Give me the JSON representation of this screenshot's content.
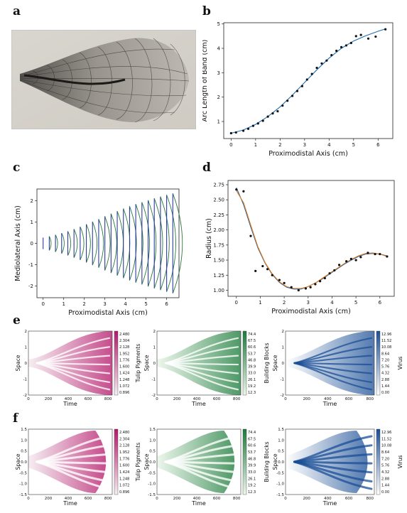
{
  "panels": {
    "a": "a",
    "b": "b",
    "c": "c",
    "d": "d",
    "e": "e",
    "f": "f"
  },
  "chart_data": [
    {
      "id": "b",
      "type": "scatter",
      "xlabel": "Proximodistal Axis (cm)",
      "ylabel": "Arc Length of Band (cm)",
      "xlim": [
        -0.3,
        6.6
      ],
      "ylim": [
        0.3,
        5.05
      ],
      "xticks": [
        0,
        1,
        2,
        3,
        4,
        5,
        6
      ],
      "yticks": [
        1,
        2,
        3,
        4,
        5
      ],
      "series": [
        {
          "kind": "points",
          "color": "#111111",
          "x": [
            0.0,
            0.2,
            0.5,
            0.7,
            0.9,
            1.1,
            1.3,
            1.5,
            1.7,
            1.9,
            2.1,
            2.3,
            2.5,
            2.7,
            2.9,
            3.1,
            3.3,
            3.5,
            3.7,
            3.9,
            4.1,
            4.3,
            4.5,
            4.7,
            4.9,
            5.1,
            5.3,
            5.6,
            5.9,
            6.3
          ],
          "y": [
            0.52,
            0.55,
            0.62,
            0.7,
            0.82,
            0.92,
            1.03,
            1.2,
            1.33,
            1.42,
            1.65,
            1.85,
            2.05,
            2.25,
            2.45,
            2.72,
            2.95,
            3.2,
            3.38,
            3.5,
            3.72,
            3.9,
            4.05,
            4.12,
            4.22,
            4.5,
            4.55,
            4.4,
            4.48,
            4.78
          ]
        },
        {
          "kind": "curve",
          "color": "#1f6fb4",
          "x": [
            0.0,
            0.5,
            1.0,
            1.5,
            2.0,
            2.5,
            3.0,
            3.5,
            4.0,
            4.5,
            5.0,
            5.5,
            6.0,
            6.3
          ],
          "y": [
            0.52,
            0.65,
            0.88,
            1.2,
            1.6,
            2.08,
            2.6,
            3.12,
            3.6,
            4.0,
            4.3,
            4.52,
            4.7,
            4.8
          ]
        }
      ]
    },
    {
      "id": "c",
      "type": "line",
      "xlabel": "Proximodistal Axis (cm)",
      "ylabel": "Mediolateral Axis (cm)",
      "xlim": [
        -0.3,
        6.6
      ],
      "ylim": [
        -2.55,
        2.55
      ],
      "xticks": [
        0,
        1,
        2,
        3,
        4,
        5,
        6
      ],
      "yticks": [
        -2,
        -1,
        0,
        1,
        2
      ],
      "band_x": [
        0.0,
        0.3,
        0.6,
        0.9,
        1.2,
        1.5,
        1.8,
        2.1,
        2.4,
        2.7,
        3.0,
        3.3,
        3.6,
        3.9,
        4.2,
        4.5,
        4.8,
        5.1,
        5.4,
        5.7,
        6.0,
        6.3
      ],
      "band_halfwidth": [
        0.27,
        0.33,
        0.4,
        0.48,
        0.57,
        0.67,
        0.78,
        0.9,
        1.02,
        1.14,
        1.27,
        1.39,
        1.51,
        1.63,
        1.74,
        1.84,
        1.93,
        2.02,
        2.11,
        2.19,
        2.27,
        2.34
      ],
      "colors": [
        "#2a3aa0",
        "#2a7a3a"
      ]
    },
    {
      "id": "d",
      "type": "scatter",
      "xlabel": "Proximodistal Axis (cm)",
      "ylabel": "Radius (cm)",
      "xlim": [
        -0.35,
        6.6
      ],
      "ylim": [
        0.9,
        2.82
      ],
      "xticks": [
        0,
        1,
        2,
        3,
        4,
        5,
        6
      ],
      "yticks": [
        1.0,
        1.25,
        1.5,
        1.75,
        2.0,
        2.25,
        2.5,
        2.75
      ],
      "ytick_labels": [
        "1.00",
        "1.25",
        "1.50",
        "1.75",
        "2.00",
        "2.25",
        "2.50",
        "2.75"
      ],
      "series": [
        {
          "kind": "points",
          "color": "#111111",
          "x": [
            0.0,
            0.3,
            0.6,
            0.8,
            1.1,
            1.3,
            1.5,
            1.8,
            2.0,
            2.3,
            2.6,
            2.9,
            3.1,
            3.3,
            3.5,
            3.7,
            3.9,
            4.1,
            4.3,
            4.6,
            4.8,
            5.0,
            5.2,
            5.5,
            5.8,
            6.0,
            6.3
          ],
          "y": [
            2.67,
            2.64,
            1.9,
            1.32,
            1.4,
            1.35,
            1.25,
            1.17,
            1.12,
            1.05,
            1.0,
            1.03,
            1.05,
            1.1,
            1.15,
            1.2,
            1.28,
            1.33,
            1.42,
            1.48,
            1.52,
            1.5,
            1.55,
            1.62,
            1.6,
            1.6,
            1.56
          ]
        },
        {
          "kind": "curve",
          "color": "#1f5fa8",
          "x": [
            0.0,
            0.3,
            0.6,
            0.9,
            1.2,
            1.5,
            1.8,
            2.1,
            2.4,
            2.7,
            3.0,
            3.3,
            3.6,
            3.9,
            4.2,
            4.5,
            4.8,
            5.1,
            5.4,
            5.7,
            6.0,
            6.3
          ],
          "y": [
            2.7,
            2.42,
            2.05,
            1.7,
            1.45,
            1.26,
            1.13,
            1.05,
            1.02,
            1.02,
            1.06,
            1.12,
            1.19,
            1.27,
            1.35,
            1.43,
            1.5,
            1.56,
            1.6,
            1.61,
            1.6,
            1.57
          ]
        },
        {
          "kind": "curve",
          "color": "#e07b1a",
          "x": [
            0.0,
            0.3,
            0.6,
            0.9,
            1.2,
            1.5,
            1.8,
            2.1,
            2.4,
            2.7,
            3.0,
            3.3,
            3.6,
            3.9,
            4.2,
            4.5,
            4.8,
            5.1,
            5.4,
            5.7,
            6.0,
            6.3
          ],
          "y": [
            2.65,
            2.45,
            2.08,
            1.72,
            1.46,
            1.27,
            1.14,
            1.06,
            1.03,
            1.03,
            1.06,
            1.12,
            1.2,
            1.28,
            1.36,
            1.44,
            1.51,
            1.57,
            1.61,
            1.62,
            1.6,
            1.56
          ]
        }
      ]
    },
    {
      "id": "e-tulip",
      "type": "heatmap",
      "xlabel": "Time",
      "ylabel": "Space",
      "colorbar_label": "Tulip Pigments",
      "xticks": [
        "0",
        "200",
        "400",
        "600",
        "800"
      ],
      "yticks": [
        "-2",
        "-1",
        "0",
        "1",
        "2"
      ],
      "colorbar_ticks": [
        "2.480",
        "2.304",
        "2.128",
        "1.952",
        "1.776",
        "1.600",
        "1.424",
        "1.248",
        "1.072",
        "0.896"
      ],
      "colors": [
        "#f6eef3",
        "#b4176a"
      ]
    },
    {
      "id": "e-blocks",
      "type": "heatmap",
      "xlabel": "Time",
      "ylabel": "Space",
      "colorbar_label": "Building Blocks",
      "xticks": [
        "0",
        "200",
        "400",
        "600",
        "800"
      ],
      "yticks": [
        "-2",
        "-1",
        "0",
        "1",
        "2"
      ],
      "colorbar_ticks": [
        "74.4",
        "67.5",
        "60.6",
        "53.7",
        "46.8",
        "39.9",
        "33.0",
        "26.1",
        "19.2",
        "12.3"
      ],
      "colors": [
        "#edf7ec",
        "#1a7a3a"
      ]
    },
    {
      "id": "e-virus",
      "type": "heatmap",
      "xlabel": "Time",
      "ylabel": "Space",
      "colorbar_label": "Virus",
      "xticks": [
        "0",
        "200",
        "400",
        "600",
        "800"
      ],
      "yticks": [
        "-2",
        "-1",
        "0",
        "1",
        "2"
      ],
      "colorbar_ticks": [
        "12.96",
        "11.52",
        "10.08",
        "8.64",
        "7.20",
        "5.76",
        "4.32",
        "2.88",
        "1.44",
        "0.00"
      ],
      "colors": [
        "#ffffff",
        "#1a4e96"
      ]
    },
    {
      "id": "f-tulip",
      "type": "heatmap",
      "xlabel": "Time",
      "ylabel": "Space",
      "colorbar_label": "Tulip Pigments",
      "xticks": [
        "0",
        "200",
        "400",
        "600",
        "800"
      ],
      "yticks": [
        "-1.5",
        "-1.0",
        "-0.5",
        "0.0",
        "0.5",
        "1.0",
        "1.5"
      ],
      "colorbar_ticks": [
        "2.480",
        "2.304",
        "2.128",
        "1.952",
        "1.776",
        "1.600",
        "1.424",
        "1.248",
        "1.072",
        "0.896"
      ],
      "colors": [
        "#f6eef3",
        "#b4176a"
      ]
    },
    {
      "id": "f-blocks",
      "type": "heatmap",
      "xlabel": "Time",
      "ylabel": "Space",
      "colorbar_label": "Building Blocks",
      "xticks": [
        "0",
        "200",
        "400",
        "600",
        "800"
      ],
      "yticks": [
        "-1.5",
        "-1.0",
        "-0.5",
        "0.0",
        "0.5",
        "1.0",
        "1.5"
      ],
      "colorbar_ticks": [
        "74.4",
        "67.5",
        "60.6",
        "53.7",
        "46.8",
        "39.9",
        "33.0",
        "26.1",
        "19.2",
        "12.3"
      ],
      "colors": [
        "#edf7ec",
        "#1a7a3a"
      ]
    },
    {
      "id": "f-virus",
      "type": "heatmap",
      "xlabel": "Time",
      "ylabel": "Space",
      "colorbar_label": "Virus",
      "xticks": [
        "0",
        "200",
        "400",
        "600",
        "800"
      ],
      "yticks": [
        "-1.5",
        "-1.0",
        "-0.5",
        "0.0",
        "0.5",
        "1.0",
        "1.5"
      ],
      "colorbar_ticks": [
        "12.96",
        "11.52",
        "10.08",
        "8.64",
        "7.20",
        "5.76",
        "4.32",
        "2.88",
        "1.44",
        "0.00"
      ],
      "colors": [
        "#ffffff",
        "#1a4e96"
      ]
    }
  ]
}
